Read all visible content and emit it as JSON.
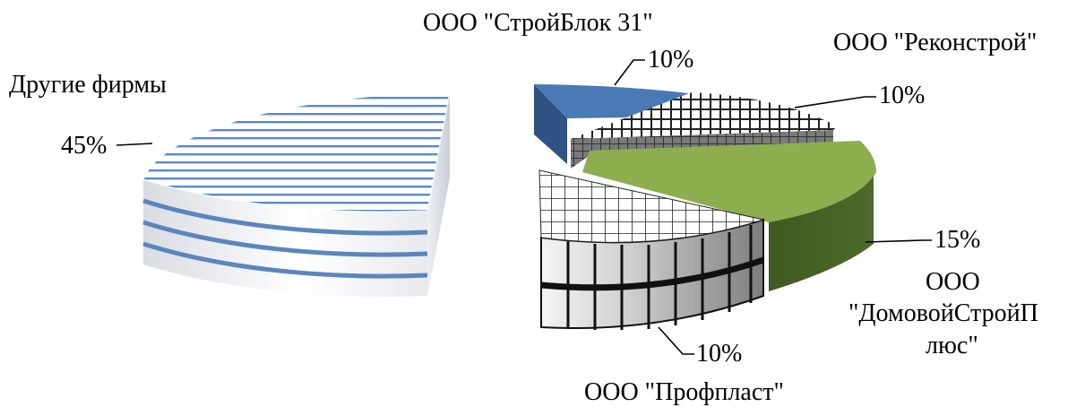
{
  "chart_data": {
    "type": "pie",
    "title": "",
    "exploded": true,
    "three_d": true,
    "slices": [
      {
        "name": "Другие фирмы",
        "label_lines": [
          "Другие фирмы"
        ],
        "value": 45,
        "value_label": "45%",
        "color": "#4f81bd",
        "pattern": "horizontal-stripes"
      },
      {
        "name": "ООО \"СтройБлок 31\"",
        "label_lines": [
          "ООО \"СтройБлок 31\""
        ],
        "value": 10,
        "value_label": "10%",
        "color": "#4a7ab5",
        "pattern": "solid"
      },
      {
        "name": "ООО \"Реконстрой\"",
        "label_lines": [
          "ООО \"Реконстрой\""
        ],
        "value": 10,
        "value_label": "10%",
        "color": "#808080",
        "pattern": "checker"
      },
      {
        "name": "ООО \"ДомовойСтройПлюс\"",
        "label_lines": [
          "ООО",
          "\"ДомовойСтройП",
          "люс\""
        ],
        "value": 15,
        "value_label": "15%",
        "color": "#8cae4f",
        "pattern": "solid"
      },
      {
        "name": "ООО \"Профпласт\"",
        "label_lines": [
          "ООО \"Профпласт\""
        ],
        "value": 10,
        "value_label": "10%",
        "color": "#303030",
        "pattern": "grid"
      }
    ]
  }
}
